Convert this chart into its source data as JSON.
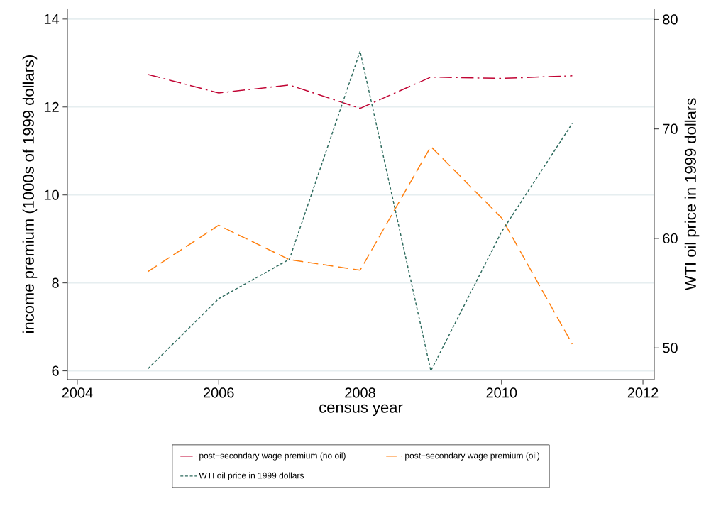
{
  "chart_data": {
    "type": "line",
    "xlabel": "census year",
    "ylabel": "income premium (1000s of 1999 dollars)",
    "y2label": "WTI oil price in 1999 dollars",
    "x": [
      2005,
      2006,
      2007,
      2008,
      2009,
      2010,
      2011
    ],
    "xlim": [
      2003.86,
      2012.16
    ],
    "xticks": [
      2004,
      2006,
      2008,
      2010,
      2012
    ],
    "ylim": [
      5.8,
      14.24
    ],
    "yticks": [
      6,
      8,
      10,
      12,
      14
    ],
    "y2lim": [
      47.1,
      81.0
    ],
    "y2ticks": [
      50,
      60,
      70,
      80
    ],
    "grid": "y",
    "legend": "bottom",
    "marker": "none",
    "series": [
      {
        "name": "post−secondary wage premium (no oil)",
        "color": "#c10534",
        "line_style": "dashdot",
        "values": [
          12.74,
          12.32,
          12.5,
          11.97,
          12.68,
          12.65,
          12.71
        ]
      },
      {
        "name": "post−secondary wage premium (oil)",
        "color": "#ff7f0e",
        "line_style": "dashed",
        "values": [
          8.26,
          9.31,
          8.53,
          8.29,
          11.1,
          9.48,
          6.61
        ]
      },
      {
        "name": "WTI oil price in 1999 dollars",
        "color": "#2e6b5e",
        "line_style": "dotted",
        "axis": "y2",
        "values": [
          48.1,
          54.5,
          58.1,
          77.1,
          47.9,
          60.6,
          70.5
        ]
      }
    ]
  }
}
